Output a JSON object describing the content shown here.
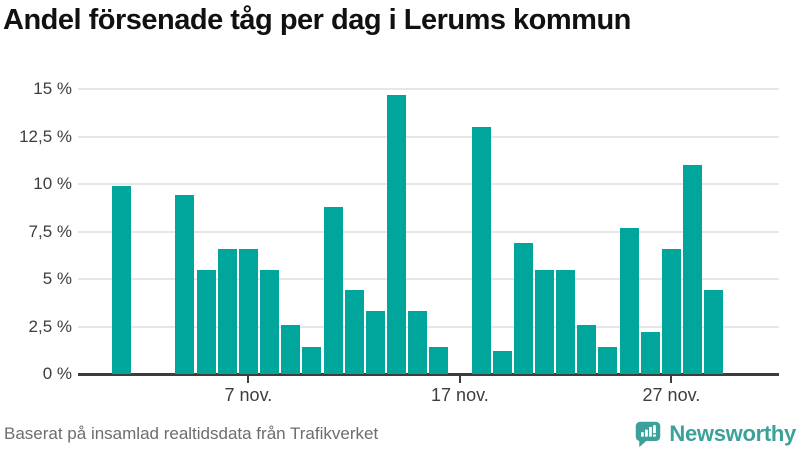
{
  "title": "Andel försenade tåg per dag i Lerums kommun",
  "footer": {
    "source_text": "Baserat på insamlad realtidsdata från Trafikverket",
    "logo_text": "Newsworthy",
    "logo_icon": "newsworthy-speech-bubble-bar-chart-icon"
  },
  "colors": {
    "bar": "#00a59c",
    "logo_teal": "#3ba19a",
    "title_text": "#111111",
    "axis_text": "#3d3d3d",
    "grid": "#e7e7e7",
    "baseline": "#3d3d3d",
    "footer_text": "#6d6d6d",
    "background": "#ffffff"
  },
  "chart_data": {
    "type": "bar",
    "title": "Andel försenade tåg per dag i Lerums kommun",
    "xlabel": "",
    "ylabel": "",
    "ylim": [
      0,
      15
    ],
    "grid": true,
    "missing_days": [
      "2 nov.",
      "3 nov.",
      "17 nov."
    ],
    "categories": [
      "1 nov.",
      "2 nov.",
      "3 nov.",
      "4 nov.",
      "5 nov.",
      "6 nov.",
      "7 nov.",
      "8 nov.",
      "9 nov.",
      "10 nov.",
      "11 nov.",
      "12 nov.",
      "13 nov.",
      "14 nov.",
      "15 nov.",
      "16 nov.",
      "17 nov.",
      "18 nov.",
      "19 nov.",
      "20 nov.",
      "21 nov.",
      "22 nov.",
      "23 nov.",
      "24 nov.",
      "25 nov.",
      "26 nov.",
      "27 nov.",
      "28 nov.",
      "29 nov."
    ],
    "values": [
      9.9,
      null,
      null,
      9.4,
      5.5,
      6.6,
      6.6,
      5.5,
      2.6,
      1.4,
      8.8,
      4.4,
      3.3,
      14.7,
      3.3,
      1.4,
      null,
      13.0,
      1.2,
      6.9,
      5.5,
      5.5,
      2.6,
      1.4,
      7.7,
      2.2,
      6.6,
      11.0,
      4.4
    ],
    "yticks": [
      0,
      2.5,
      5,
      7.5,
      10,
      12.5,
      15
    ],
    "ytick_labels": [
      "0 %",
      "2,5 %",
      "5 %",
      "7,5 %",
      "10 %",
      "12,5 %",
      "15 %"
    ],
    "xticks": [
      {
        "day": 7,
        "label": "7 nov."
      },
      {
        "day": 17,
        "label": "17 nov."
      },
      {
        "day": 27,
        "label": "27 nov."
      }
    ]
  }
}
